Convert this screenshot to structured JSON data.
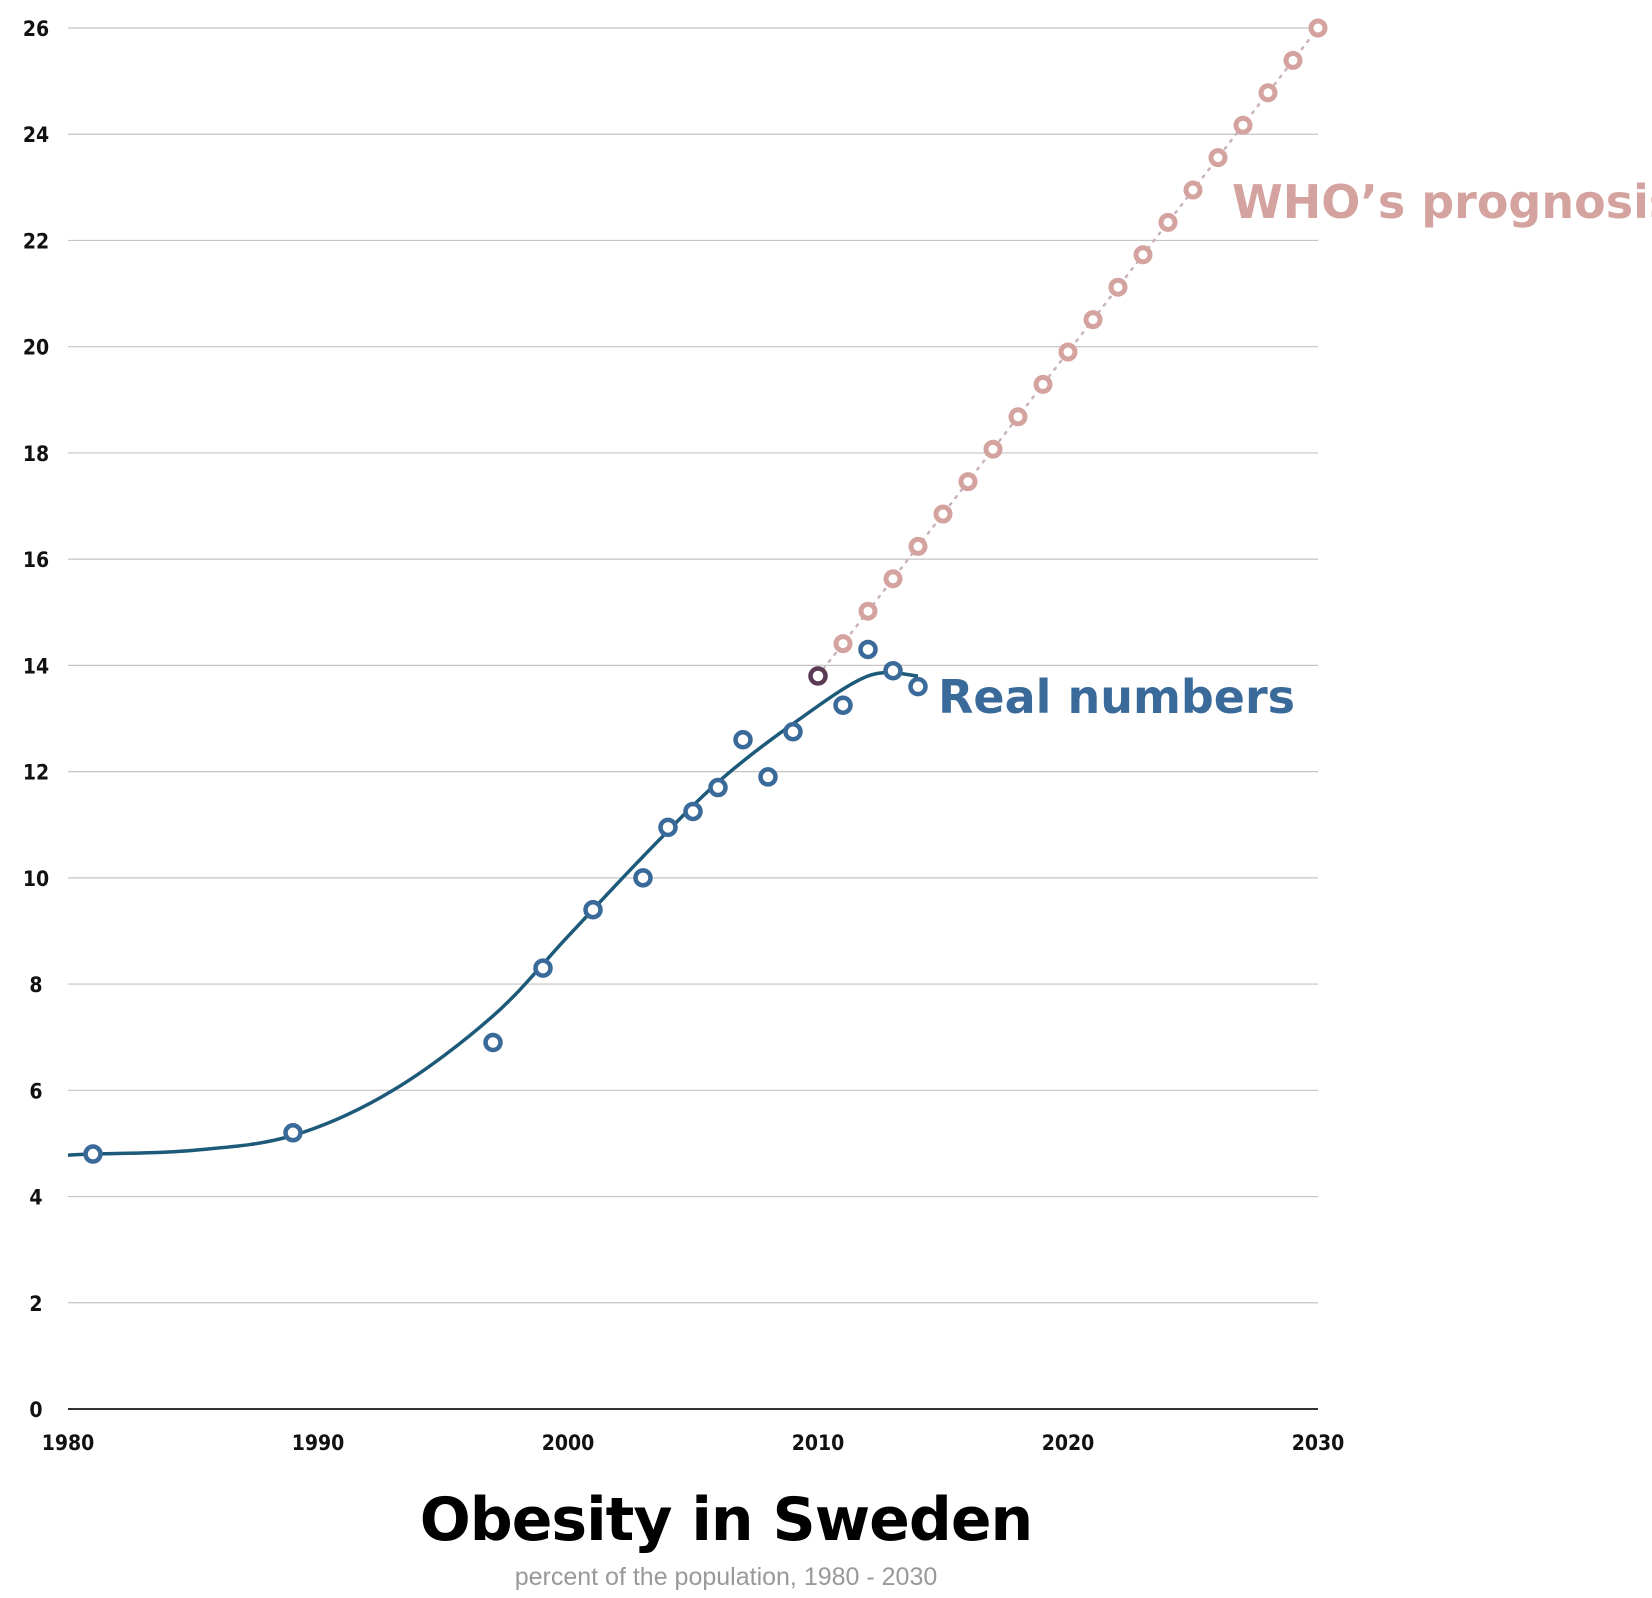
{
  "chart_data": {
    "type": "scatter",
    "title": "Obesity in Sweden",
    "subtitle": "percent of the population, 1980 - 2030",
    "xlim": [
      1980,
      2030
    ],
    "ylim": [
      0,
      26
    ],
    "x_ticks": [
      "1980",
      "1990",
      "2000",
      "2010",
      "2020",
      "2030"
    ],
    "y_ticks": [
      "0",
      "2",
      "4",
      "6",
      "8",
      "10",
      "12",
      "14",
      "16",
      "18",
      "20",
      "22",
      "24",
      "26"
    ],
    "grid": true,
    "series": [
      {
        "name": "Real numbers",
        "color": "#3a6a99",
        "x": [
          1981,
          1989,
          1997,
          1999,
          2001,
          2003,
          2004,
          2005,
          2006,
          2007,
          2008,
          2009,
          2010,
          2011,
          2012,
          2013,
          2014
        ],
        "y": [
          4.8,
          5.2,
          6.9,
          8.3,
          9.4,
          10.0,
          10.95,
          11.25,
          11.7,
          12.6,
          11.9,
          12.75,
          13.8,
          13.25,
          14.3,
          13.9,
          13.6
        ],
        "trend": {
          "color": "#1d5a7a",
          "x": [
            1980,
            1981,
            1985,
            1989,
            1993,
            1997,
            2000,
            2003,
            2006,
            2009,
            2012,
            2014
          ],
          "y": [
            4.78,
            4.8,
            4.87,
            5.15,
            6.0,
            7.4,
            8.9,
            10.4,
            11.8,
            12.9,
            13.8,
            13.8
          ]
        }
      },
      {
        "name": "WHO’s prognosis",
        "color": "#d4a3a0",
        "x": [
          2010,
          2011,
          2012,
          2013,
          2014,
          2015,
          2016,
          2017,
          2018,
          2019,
          2020,
          2021,
          2022,
          2023,
          2024,
          2025,
          2026,
          2027,
          2028,
          2029,
          2030
        ],
        "y": [
          13.8,
          14.41,
          15.02,
          15.63,
          16.24,
          16.85,
          17.46,
          18.07,
          18.68,
          19.29,
          19.9,
          20.51,
          21.12,
          21.73,
          22.34,
          22.95,
          23.56,
          24.17,
          24.78,
          25.39,
          26.0
        ]
      }
    ],
    "junction_color": "#5a3a55"
  }
}
